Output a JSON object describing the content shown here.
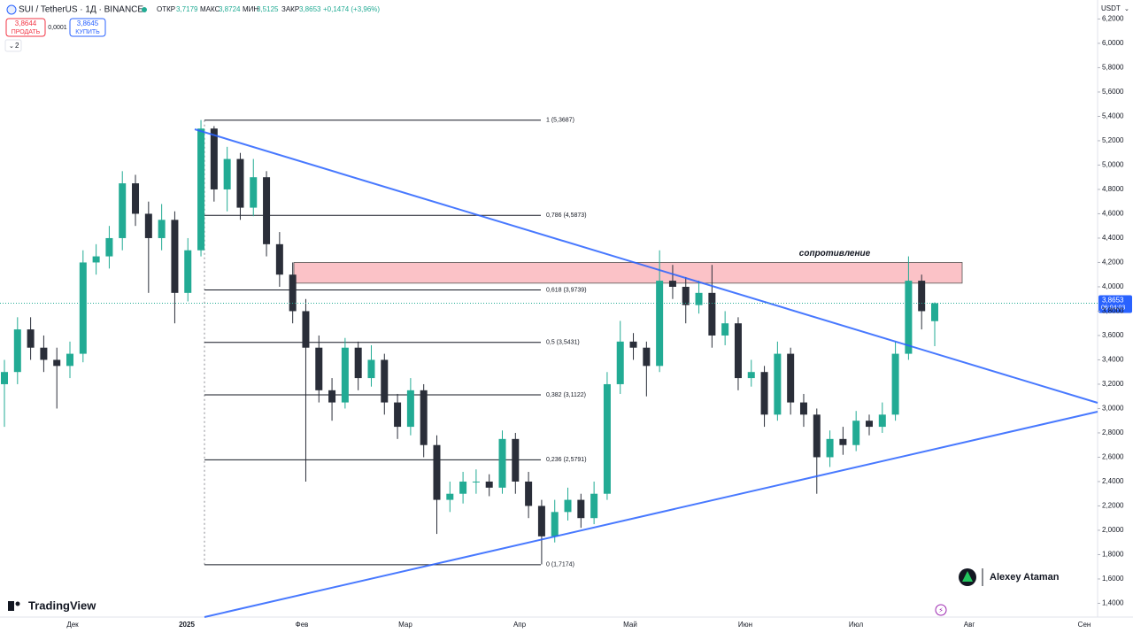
{
  "chart_data": {
    "type": "candlestick",
    "title": "SUI / TetherUS · 1Д · BINANCE",
    "header": {
      "open_label": "ОТКР",
      "open": "3,7179",
      "high_label": "МАКС",
      "high": "3,8724",
      "low_label": "МИН",
      "low": "3,5125",
      "close_label": "ЗАКР",
      "close": "3,8653",
      "change": "+0,1474 (+3,96%)"
    },
    "trade_buttons": {
      "sell_price": "3,8644",
      "sell": "ПРОДАТЬ",
      "spread": "0,0001",
      "buy_price": "3,8645",
      "buy": "КУПИТЬ",
      "indicators": "2"
    },
    "currency": "USDT",
    "last_price": {
      "value": 3.8653,
      "label": "3,8653",
      "countdown": "06:04:03"
    },
    "categories": [
      "Дек",
      "2025",
      "Фев",
      "Мар",
      "Апр",
      "Май",
      "Июн",
      "Июл",
      "Авг",
      "Сен"
    ],
    "open": [
      3.2,
      3.3,
      3.65,
      3.5,
      3.4,
      3.35,
      3.45,
      4.2,
      4.25,
      4.4,
      4.85,
      4.6,
      4.4,
      4.55,
      3.95,
      4.3,
      5.3,
      4.8,
      5.05,
      4.65,
      4.9,
      4.35,
      4.1,
      3.8,
      3.5,
      3.15,
      3.05,
      3.5,
      3.25,
      3.4,
      3.05,
      2.85,
      3.15,
      2.7,
      2.25,
      2.3,
      2.4,
      2.4,
      2.35,
      2.75,
      2.4,
      2.2,
      1.95,
      2.15,
      2.25,
      2.1,
      2.3,
      3.2,
      3.55,
      3.5,
      3.35,
      4.05,
      4.0,
      3.85,
      3.95,
      3.6,
      3.7,
      3.25,
      3.3,
      2.95,
      3.45,
      3.05,
      2.95,
      2.6,
      2.75,
      2.7,
      2.9,
      2.85,
      2.95,
      3.45,
      4.05,
      3.7179
    ],
    "high": [
      3.4,
      3.75,
      3.75,
      3.6,
      3.5,
      3.55,
      4.3,
      4.35,
      4.5,
      4.95,
      4.92,
      4.7,
      4.68,
      4.62,
      4.4,
      5.37,
      5.32,
      5.15,
      5.1,
      5.05,
      4.95,
      4.45,
      4.2,
      3.9,
      3.6,
      3.25,
      3.58,
      3.55,
      3.52,
      3.45,
      3.12,
      3.25,
      3.2,
      2.78,
      2.4,
      2.48,
      2.5,
      2.46,
      2.82,
      2.8,
      2.48,
      2.25,
      2.25,
      2.35,
      2.3,
      2.4,
      3.3,
      3.72,
      3.62,
      3.55,
      4.3,
      4.18,
      4.08,
      4.05,
      4.18,
      3.8,
      3.75,
      3.4,
      3.35,
      3.55,
      3.5,
      3.12,
      3.0,
      2.82,
      2.85,
      2.98,
      2.95,
      3.05,
      3.55,
      4.25,
      4.1,
      3.8724
    ],
    "low": [
      2.85,
      3.2,
      3.4,
      3.3,
      3.0,
      3.25,
      3.38,
      4.1,
      4.15,
      4.3,
      4.5,
      3.95,
      4.3,
      3.7,
      3.88,
      4.25,
      4.7,
      4.62,
      4.55,
      4.58,
      4.25,
      4.0,
      3.7,
      2.4,
      3.05,
      2.9,
      3.0,
      3.15,
      3.18,
      2.95,
      2.75,
      2.78,
      2.6,
      1.97,
      2.15,
      2.22,
      2.3,
      2.28,
      2.3,
      2.3,
      2.1,
      1.72,
      1.9,
      2.08,
      2.02,
      2.05,
      2.25,
      3.12,
      3.4,
      3.1,
      3.3,
      3.9,
      3.7,
      3.78,
      3.5,
      3.52,
      3.15,
      3.18,
      2.85,
      2.9,
      2.95,
      2.85,
      2.3,
      2.52,
      2.62,
      2.65,
      2.78,
      2.8,
      2.9,
      3.4,
      3.65,
      3.5125
    ],
    "close": [
      3.3,
      3.65,
      3.5,
      3.4,
      3.35,
      3.45,
      4.2,
      4.25,
      4.4,
      4.85,
      4.6,
      4.4,
      4.55,
      3.95,
      4.3,
      5.3,
      4.8,
      5.05,
      4.65,
      4.9,
      4.35,
      4.1,
      3.8,
      3.5,
      3.15,
      3.05,
      3.5,
      3.25,
      3.4,
      3.05,
      2.85,
      3.15,
      2.7,
      2.25,
      2.3,
      2.4,
      2.4,
      2.35,
      2.75,
      2.4,
      2.2,
      1.95,
      2.15,
      2.25,
      2.1,
      2.3,
      3.2,
      3.55,
      3.5,
      3.35,
      4.05,
      4.0,
      3.85,
      3.95,
      3.6,
      3.7,
      3.25,
      3.3,
      2.95,
      3.45,
      3.05,
      2.95,
      2.6,
      2.75,
      2.7,
      2.9,
      2.85,
      2.95,
      3.45,
      4.05,
      3.8,
      3.8653
    ],
    "up_color": "#22ab94",
    "down_color": "#2a2e39",
    "ylim": [
      1.287,
      6.356
    ],
    "yticks": [
      {
        "value": 1.4,
        "label": "1,4000"
      },
      {
        "value": 1.6,
        "label": "1,6000"
      },
      {
        "value": 1.8,
        "label": "1,8000"
      },
      {
        "value": 2.0,
        "label": "2,0000"
      },
      {
        "value": 2.2,
        "label": "2,2000"
      },
      {
        "value": 2.4,
        "label": "2,4000"
      },
      {
        "value": 2.6,
        "label": "2,6000"
      },
      {
        "value": 2.8,
        "label": "2,8000"
      },
      {
        "value": 3.0,
        "label": "3,0000"
      },
      {
        "value": 3.2,
        "label": "3,2000"
      },
      {
        "value": 3.4,
        "label": "3,4000"
      },
      {
        "value": 3.6,
        "label": "3,6000"
      },
      {
        "value": 3.8,
        "label": "3,8000"
      },
      {
        "value": 4.0,
        "label": "4,0000"
      },
      {
        "value": 4.2,
        "label": "4,2000"
      },
      {
        "value": 4.4,
        "label": "4,4000"
      },
      {
        "value": 4.6,
        "label": "4,6000"
      },
      {
        "value": 4.8,
        "label": "4,8000"
      },
      {
        "value": 5.0,
        "label": "5,0000"
      },
      {
        "value": 5.2,
        "label": "5,2000"
      },
      {
        "value": 5.4,
        "label": "5,4000"
      },
      {
        "value": 5.6,
        "label": "5,6000"
      },
      {
        "value": 5.8,
        "label": "5,8000"
      },
      {
        "value": 6.0,
        "label": "6,0000"
      },
      {
        "value": 6.2,
        "label": "6,2000"
      }
    ],
    "fib_levels": [
      {
        "value": 5.3687,
        "label": "1 (5,3687)"
      },
      {
        "value": 4.5873,
        "label": "0,786 (4,5873)"
      },
      {
        "value": 3.9739,
        "label": "0,618 (3,9739)"
      },
      {
        "value": 3.5431,
        "label": "0,5 (3,5431)"
      },
      {
        "value": 3.1122,
        "label": "0,382 (3,1122)"
      },
      {
        "value": 2.5791,
        "label": "0,236 (2,5791)"
      },
      {
        "value": 1.7174,
        "label": "0 (1,7174)"
      }
    ],
    "resistance": {
      "label": "сопротивление",
      "range": [
        4.03,
        4.2
      ]
    },
    "author": "Alexey Ataman",
    "brand": "TradingView"
  }
}
